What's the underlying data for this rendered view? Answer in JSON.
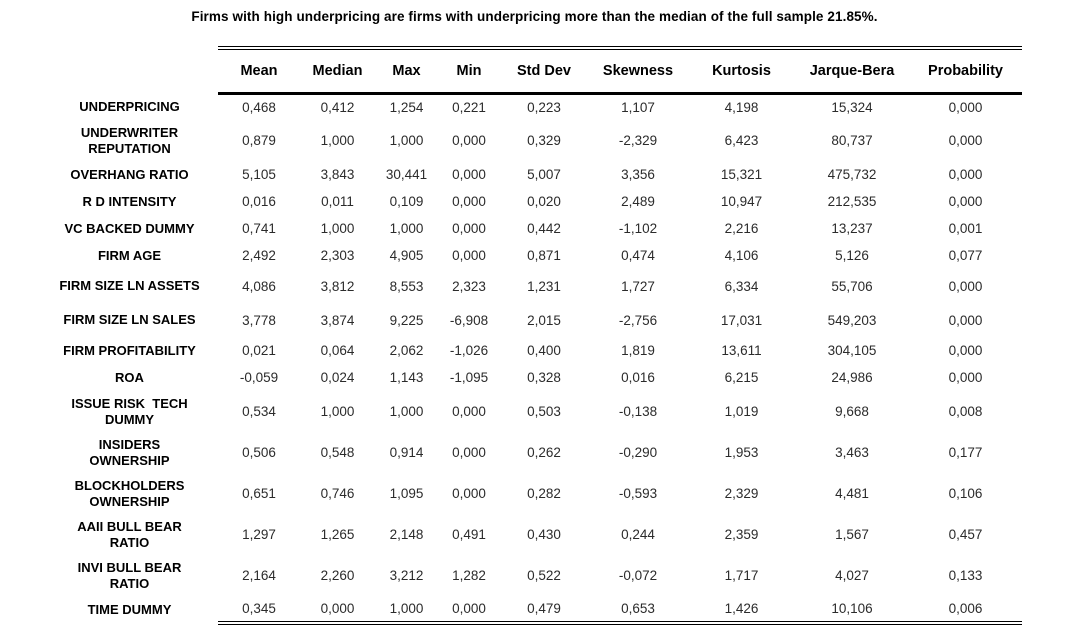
{
  "title": "Firms with high underpricing are firms with underpricing more than the median of the full sample 21.85%.",
  "table": {
    "columns": [
      "Mean",
      "Median",
      "Max",
      "Min",
      "Std Dev",
      "Skewness",
      "Kurtosis",
      "Jarque-Bera",
      "Probability"
    ],
    "rows": [
      {
        "label": "UNDERPRICING",
        "values": [
          "0,468",
          "0,412",
          "1,254",
          "0,221",
          "0,223",
          "1,107",
          "4,198",
          "15,324",
          "0,000"
        ]
      },
      {
        "label": "UNDERWRITER\nREPUTATION",
        "values": [
          "0,879",
          "1,000",
          "1,000",
          "0,000",
          "0,329",
          "-2,329",
          "6,423",
          "80,737",
          "0,000"
        ]
      },
      {
        "label": "OVERHANG RATIO",
        "values": [
          "5,105",
          "3,843",
          "30,441",
          "0,000",
          "5,007",
          "3,356",
          "15,321",
          "475,732",
          "0,000"
        ]
      },
      {
        "label": "R D INTENSITY",
        "values": [
          "0,016",
          "0,011",
          "0,109",
          "0,000",
          "0,020",
          "2,489",
          "10,947",
          "212,535",
          "0,000"
        ]
      },
      {
        "label": "VC BACKED DUMMY",
        "values": [
          "0,741",
          "1,000",
          "1,000",
          "0,000",
          "0,442",
          "-1,102",
          "2,216",
          "13,237",
          "0,001"
        ]
      },
      {
        "label": "FIRM AGE",
        "values": [
          "2,492",
          "2,303",
          "4,905",
          "0,000",
          "0,871",
          "0,474",
          "4,106",
          "5,126",
          "0,077"
        ]
      },
      {
        "label": "FIRM SIZE LN ASSETS",
        "values": [
          "4,086",
          "3,812",
          "8,553",
          "2,323",
          "1,231",
          "1,727",
          "6,334",
          "55,706",
          "0,000"
        ]
      },
      {
        "label": "FIRM SIZE LN SALES",
        "values": [
          "3,778",
          "3,874",
          "9,225",
          "-6,908",
          "2,015",
          "-2,756",
          "17,031",
          "549,203",
          "0,000"
        ]
      },
      {
        "label": "FIRM PROFITABILITY",
        "values": [
          "0,021",
          "0,064",
          "2,062",
          "-1,026",
          "0,400",
          "1,819",
          "13,611",
          "304,105",
          "0,000"
        ]
      },
      {
        "label": "ROA",
        "values": [
          "-0,059",
          "0,024",
          "1,143",
          "-1,095",
          "0,328",
          "0,016",
          "6,215",
          "24,986",
          "0,000"
        ]
      },
      {
        "label": "ISSUE RISK  TECH\nDUMMY",
        "values": [
          "0,534",
          "1,000",
          "1,000",
          "0,000",
          "0,503",
          "-0,138",
          "1,019",
          "9,668",
          "0,008"
        ]
      },
      {
        "label": "INSIDERS\nOWNERSHIP",
        "values": [
          "0,506",
          "0,548",
          "0,914",
          "0,000",
          "0,262",
          "-0,290",
          "1,953",
          "3,463",
          "0,177"
        ]
      },
      {
        "label": "BLOCKHOLDERS\nOWNERSHIP",
        "values": [
          "0,651",
          "0,746",
          "1,095",
          "0,000",
          "0,282",
          "-0,593",
          "2,329",
          "4,481",
          "0,106"
        ]
      },
      {
        "label": "AAII BULL BEAR\nRATIO",
        "values": [
          "1,297",
          "1,265",
          "2,148",
          "0,491",
          "0,430",
          "0,244",
          "2,359",
          "1,567",
          "0,457"
        ]
      },
      {
        "label": "INVI BULL BEAR\nRATIO",
        "values": [
          "2,164",
          "2,260",
          "3,212",
          "1,282",
          "0,522",
          "-0,072",
          "1,717",
          "4,027",
          "0,133"
        ]
      },
      {
        "label": "TIME DUMMY",
        "values": [
          "0,345",
          "0,000",
          "1,000",
          "0,000",
          "0,479",
          "0,653",
          "1,426",
          "10,106",
          "0,006"
        ]
      }
    ]
  }
}
